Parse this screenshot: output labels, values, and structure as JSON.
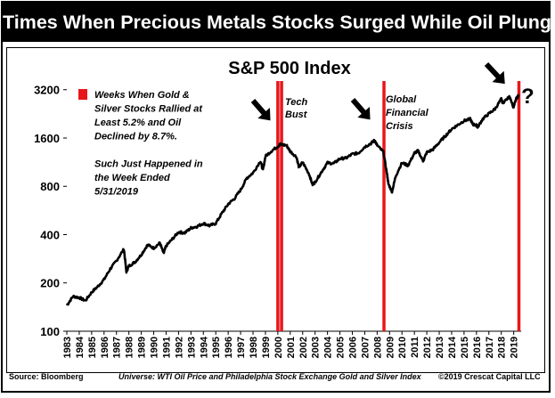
{
  "header": {
    "title": "Times When Precious Metals Stocks Surged While Oil Plunged"
  },
  "chart_data": {
    "type": "line",
    "title": "S&P 500 Index",
    "y_scale": "log",
    "ylim": [
      100,
      3400
    ],
    "xlim": [
      1983,
      2019.6
    ],
    "y_ticks": [
      {
        "value": 100,
        "label": "100"
      },
      {
        "value": 200,
        "label": "200"
      },
      {
        "value": 400,
        "label": "400"
      },
      {
        "value": 800,
        "label": "800"
      },
      {
        "value": 1600,
        "label": "1600"
      },
      {
        "value": 3200,
        "label": "3200"
      }
    ],
    "x_ticks": [
      1983,
      1984,
      1985,
      1986,
      1987,
      1988,
      1989,
      1990,
      1991,
      1992,
      1993,
      1994,
      1995,
      1996,
      1997,
      1998,
      1999,
      2000,
      2001,
      2002,
      2003,
      2004,
      2005,
      2006,
      2007,
      2008,
      2009,
      2010,
      2011,
      2012,
      2013,
      2014,
      2015,
      2016,
      2017,
      2018,
      2019
    ],
    "series": [
      {
        "x": [
          1983.0,
          1983.5,
          1984.0,
          1984.5,
          1985.0,
          1985.5,
          1986.0,
          1986.5,
          1987.0,
          1987.6,
          1987.8,
          1988.0,
          1988.5,
          1989.0,
          1989.5,
          1990.0,
          1990.5,
          1990.8,
          1991.0,
          1991.5,
          1992.0,
          1992.5,
          1993.0,
          1993.5,
          1994.0,
          1994.5,
          1995.0,
          1995.5,
          1996.0,
          1996.5,
          1997.0,
          1997.5,
          1998.0,
          1998.6,
          1998.8,
          1999.0,
          1999.5,
          2000.0,
          2000.2,
          2000.7,
          2001.0,
          2001.5,
          2001.7,
          2002.0,
          2002.5,
          2002.8,
          2003.0,
          2003.5,
          2004.0,
          2004.5,
          2005.0,
          2005.5,
          2006.0,
          2006.5,
          2007.0,
          2007.5,
          2007.8,
          2008.0,
          2008.5,
          2008.8,
          2008.9,
          2009.2,
          2009.5,
          2010.0,
          2010.5,
          2011.0,
          2011.3,
          2011.7,
          2012.0,
          2012.5,
          2013.0,
          2013.5,
          2014.0,
          2014.5,
          2015.0,
          2015.5,
          2015.7,
          2016.0,
          2016.1,
          2016.5,
          2017.0,
          2017.5,
          2018.0,
          2018.1,
          2018.7,
          2018.98,
          2019.2,
          2019.4
        ],
        "y": [
          145,
          165,
          162,
          155,
          175,
          190,
          210,
          245,
          275,
          325,
          235,
          255,
          270,
          300,
          345,
          330,
          355,
          305,
          340,
          375,
          415,
          410,
          440,
          450,
          470,
          455,
          470,
          545,
          620,
          670,
          760,
          900,
          970,
          1150,
          1010,
          1230,
          1330,
          1420,
          1460,
          1440,
          1320,
          1220,
          1050,
          1130,
          960,
          820,
          850,
          980,
          1120,
          1110,
          1190,
          1200,
          1270,
          1290,
          1410,
          1480,
          1550,
          1440,
          1310,
          950,
          830,
          740,
          930,
          1120,
          1080,
          1290,
          1330,
          1150,
          1300,
          1360,
          1500,
          1650,
          1820,
          1930,
          2050,
          2100,
          1950,
          1920,
          1870,
          2100,
          2270,
          2430,
          2800,
          2650,
          2900,
          2480,
          2800,
          2950
        ]
      }
    ],
    "red_bars": [
      2000.0,
      2000.3,
      2008.55,
      2019.42
    ],
    "legend_text": [
      "Weeks When Gold &",
      "Silver Stocks Rallied at",
      "Least 5.2% and Oil",
      "Declined by 8.7%.",
      "",
      "Such Just Happened in",
      "the Week Ended",
      "5/31/2019"
    ],
    "annotations": {
      "tech": [
        "Tech",
        "Bust"
      ],
      "gfc": [
        "Global",
        "Financial",
        "Crisis"
      ],
      "question": "?"
    }
  },
  "footer": {
    "source": "Source: Bloomberg",
    "universe": "Universe: WTI Oil Price and Philadelphia Stock Exchange Gold and Silver Index",
    "copyright": "©2019 Crescat Capital LLC"
  },
  "colors": {
    "line": "#000000",
    "accent": "#e8161b",
    "title_bg": "#000000"
  }
}
